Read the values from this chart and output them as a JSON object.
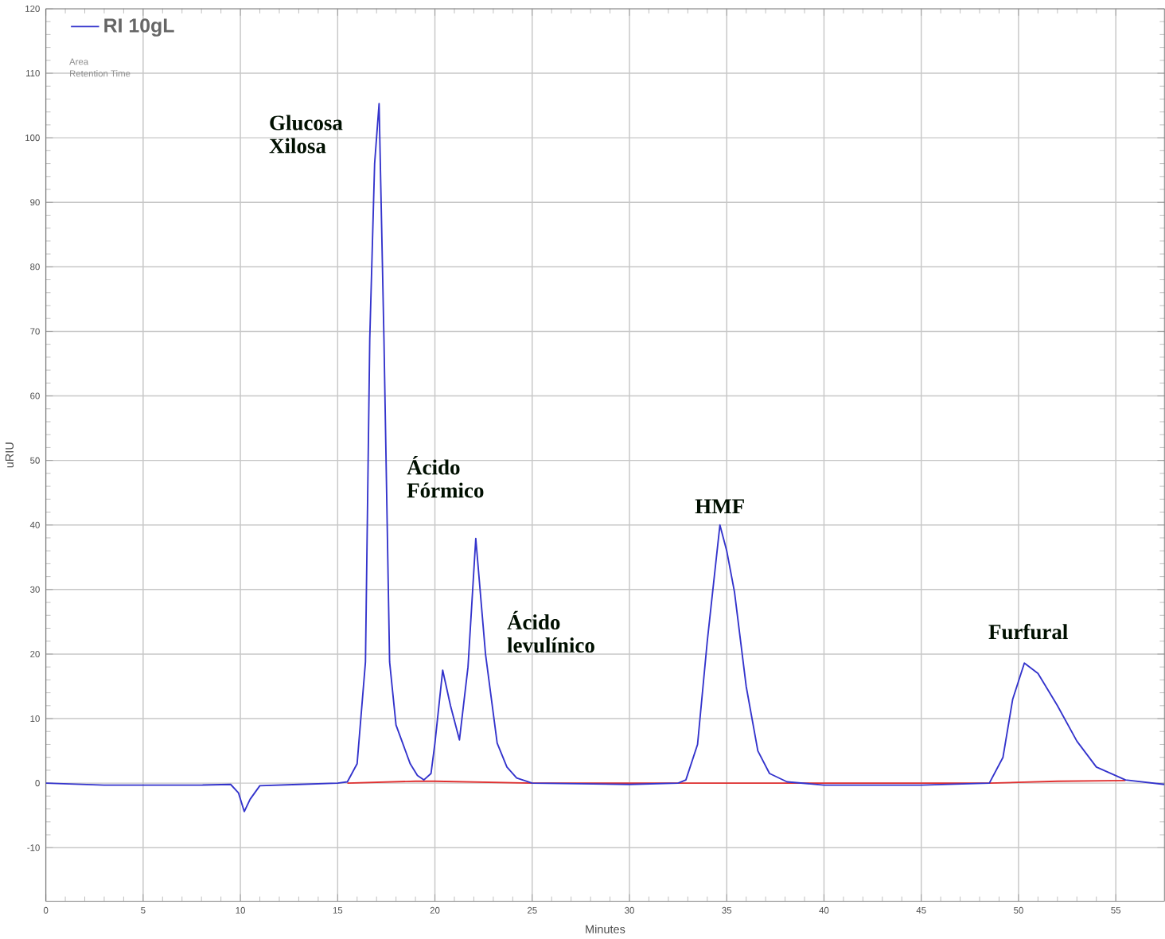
{
  "chart_data": {
    "type": "line",
    "xlabel": "Minutes",
    "ylabel": "uRIU",
    "xlim": [
      0,
      57.5
    ],
    "ylim": [
      -18.3,
      120
    ],
    "xticks": [
      0,
      5,
      10,
      15,
      20,
      25,
      30,
      35,
      40,
      45,
      50,
      55
    ],
    "yticks": [
      -10,
      0,
      10,
      20,
      30,
      40,
      50,
      60,
      70,
      80,
      90,
      100,
      110,
      120
    ],
    "grid": true,
    "legend": "top left",
    "marker": "none",
    "line_style": "solid",
    "series": [
      {
        "name": "RI 10gL",
        "color": "#3333cc",
        "x": [
          0,
          3,
          8,
          9.5,
          9.9,
          10.2,
          10.5,
          11,
          13,
          15,
          15.5,
          16,
          16.43,
          16.65,
          16.9,
          17.13,
          17.38,
          17.67,
          18.0,
          18.73,
          19.1,
          19.43,
          19.8,
          20.0,
          20.4,
          20.8,
          21.26,
          21.7,
          22.1,
          22.6,
          23.2,
          23.7,
          24.2,
          25,
          30,
          32.5,
          32.9,
          33.5,
          34.0,
          34.65,
          35.0,
          35.4,
          36.0,
          36.6,
          37.2,
          38.1,
          40,
          45,
          48.5,
          49.2,
          49.7,
          50.3,
          51.0,
          52.0,
          53.0,
          54.0,
          55.5,
          57.5
        ],
        "values": [
          0,
          -0.3,
          -0.3,
          -0.2,
          -1.5,
          -4.4,
          -2.5,
          -0.4,
          -0.2,
          0,
          0.2,
          3,
          18.8,
          68.8,
          96,
          105.3,
          68.8,
          18.8,
          9,
          3,
          1.2,
          0.5,
          1.5,
          6.2,
          17.5,
          12,
          6.7,
          18,
          37.9,
          20,
          6.2,
          2.5,
          0.8,
          0,
          -0.2,
          0,
          0.5,
          6,
          22,
          40,
          36,
          29.6,
          15,
          5,
          1.5,
          0.2,
          -0.3,
          -0.3,
          0,
          4,
          13,
          18.6,
          17,
          12,
          6.5,
          2.5,
          0.5,
          -0.2
        ]
      },
      {
        "color": "#e03030",
        "x": [
          15.5,
          19,
          20,
          25,
          33,
          38,
          48.5,
          52,
          55.5
        ],
        "values": [
          0,
          0.3,
          0.3,
          0,
          0,
          0,
          0,
          0.3,
          0.4
        ]
      }
    ],
    "annotations": [
      {
        "text": "Glucosa Xilosa",
        "x": 17.13,
        "y": 105.3
      },
      "Ácido Fórmico",
      "Ácido levulínico",
      {
        "text": "HMF",
        "x": 34.65,
        "y": 40
      },
      {
        "text": "Furfural",
        "x": 50.3,
        "y": 18.6
      },
      "Area",
      "Retention Time"
    ]
  }
}
